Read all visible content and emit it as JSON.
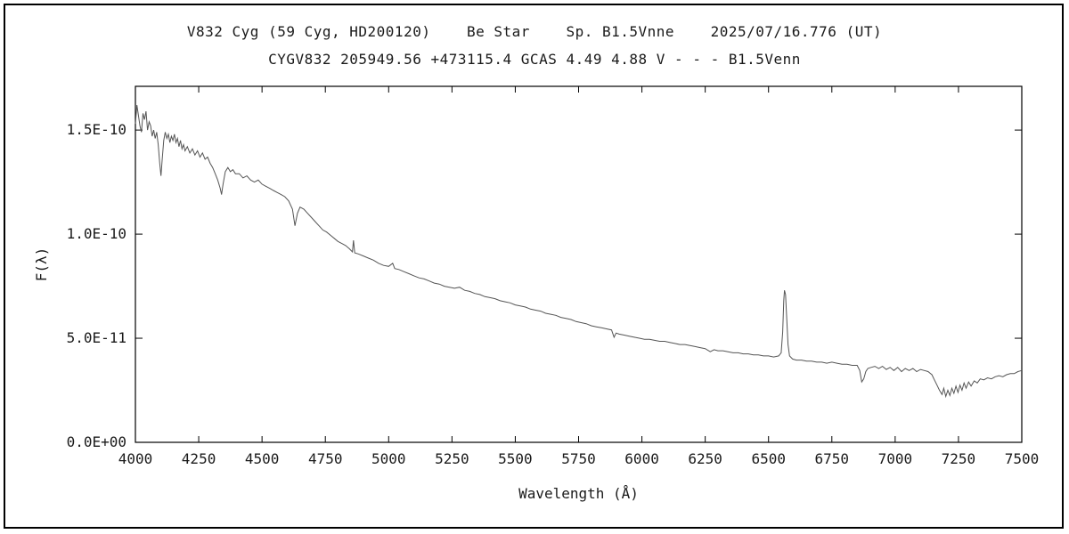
{
  "header": {
    "line1": "V832 Cyg (59 Cyg, HD200120)    Be Star    Sp. B1.5Vnne    2025/07/16.776 (UT)",
    "line2": "CYGV832 205949.56 +473115.4 GCAS 4.49 4.88 V - - - B1.5Venn"
  },
  "colors": {
    "spectrum_line": "#555555",
    "axis": "#000000",
    "background": "#ffffff",
    "text": "#1a1a1a"
  },
  "chart_data": {
    "type": "line",
    "title": "V832 Cyg (59 Cyg, HD200120) Be Star Sp. B1.5Vnne 2025/07/16.776 (UT)",
    "subtitle": "CYGV832 205949.56 +473115.4 GCAS 4.49 4.88 V - - - B1.5Venn",
    "xlabel": "Wavelength (Å)",
    "ylabel": "F(λ)",
    "grid": false,
    "legend": null,
    "y_unit": "1e-11",
    "xlim": [
      4000,
      7500
    ],
    "ylim": [
      0,
      17.1
    ],
    "x_ticks": [
      4000,
      4250,
      4500,
      4750,
      5000,
      5250,
      5500,
      5750,
      6000,
      6250,
      6500,
      6750,
      7000,
      7250,
      7500
    ],
    "y_ticks": [
      {
        "v": 0,
        "label": "0.0E+00"
      },
      {
        "v": 5,
        "label": "5.0E-11"
      },
      {
        "v": 10,
        "label": "1.0E-10"
      },
      {
        "v": 15,
        "label": "1.5E-10"
      }
    ],
    "features": [
      {
        "name": "H-delta absorption",
        "wavelength": 4101
      },
      {
        "name": "H-gamma absorption",
        "wavelength": 4340
      },
      {
        "name": "H-beta weak emission",
        "wavelength": 4861
      },
      {
        "name": "Na D absorption",
        "wavelength": 5890
      },
      {
        "name": "H-alpha emission peak",
        "wavelength": 6563,
        "flux": 7.3
      },
      {
        "name": "telluric B band absorption",
        "wavelength": 6870
      },
      {
        "name": "telluric H2O absorption band",
        "wavelength": 7200
      }
    ],
    "points": [
      [
        4000,
        15.3
      ],
      [
        4006,
        16.2
      ],
      [
        4012,
        15.7
      ],
      [
        4018,
        15.2
      ],
      [
        4024,
        14.9
      ],
      [
        4030,
        15.8
      ],
      [
        4036,
        15.5
      ],
      [
        4042,
        15.9
      ],
      [
        4048,
        15.0
      ],
      [
        4054,
        15.4
      ],
      [
        4060,
        15.2
      ],
      [
        4066,
        14.7
      ],
      [
        4072,
        15.0
      ],
      [
        4078,
        14.6
      ],
      [
        4084,
        14.9
      ],
      [
        4090,
        14.3
      ],
      [
        4096,
        13.4
      ],
      [
        4101,
        12.8
      ],
      [
        4106,
        13.6
      ],
      [
        4112,
        14.5
      ],
      [
        4118,
        14.9
      ],
      [
        4124,
        14.6
      ],
      [
        4130,
        14.8
      ],
      [
        4136,
        14.4
      ],
      [
        4142,
        14.7
      ],
      [
        4148,
        14.5
      ],
      [
        4154,
        14.8
      ],
      [
        4160,
        14.4
      ],
      [
        4166,
        14.6
      ],
      [
        4172,
        14.2
      ],
      [
        4178,
        14.5
      ],
      [
        4184,
        14.1
      ],
      [
        4190,
        14.3
      ],
      [
        4196,
        14.0
      ],
      [
        4205,
        14.2
      ],
      [
        4215,
        13.9
      ],
      [
        4225,
        14.1
      ],
      [
        4235,
        13.8
      ],
      [
        4245,
        14.0
      ],
      [
        4255,
        13.7
      ],
      [
        4265,
        13.9
      ],
      [
        4275,
        13.6
      ],
      [
        4285,
        13.7
      ],
      [
        4295,
        13.4
      ],
      [
        4305,
        13.2
      ],
      [
        4315,
        12.9
      ],
      [
        4325,
        12.6
      ],
      [
        4335,
        12.2
      ],
      [
        4340,
        11.9
      ],
      [
        4346,
        12.4
      ],
      [
        4355,
        13.0
      ],
      [
        4365,
        13.2
      ],
      [
        4375,
        13.0
      ],
      [
        4385,
        13.1
      ],
      [
        4395,
        12.9
      ],
      [
        4410,
        12.9
      ],
      [
        4425,
        12.7
      ],
      [
        4440,
        12.8
      ],
      [
        4455,
        12.6
      ],
      [
        4470,
        12.5
      ],
      [
        4485,
        12.6
      ],
      [
        4500,
        12.4
      ],
      [
        4515,
        12.3
      ],
      [
        4530,
        12.2
      ],
      [
        4545,
        12.1
      ],
      [
        4560,
        12.0
      ],
      [
        4575,
        11.9
      ],
      [
        4590,
        11.8
      ],
      [
        4605,
        11.6
      ],
      [
        4620,
        11.2
      ],
      [
        4630,
        10.4
      ],
      [
        4640,
        11.0
      ],
      [
        4650,
        11.3
      ],
      [
        4665,
        11.2
      ],
      [
        4680,
        11.0
      ],
      [
        4695,
        10.8
      ],
      [
        4710,
        10.6
      ],
      [
        4725,
        10.4
      ],
      [
        4740,
        10.2
      ],
      [
        4755,
        10.1
      ],
      [
        4770,
        9.95
      ],
      [
        4785,
        9.8
      ],
      [
        4800,
        9.65
      ],
      [
        4815,
        9.55
      ],
      [
        4830,
        9.45
      ],
      [
        4845,
        9.3
      ],
      [
        4857,
        9.15
      ],
      [
        4861,
        9.7
      ],
      [
        4866,
        9.1
      ],
      [
        4880,
        9.05
      ],
      [
        4900,
        8.95
      ],
      [
        4920,
        8.85
      ],
      [
        4940,
        8.75
      ],
      [
        4960,
        8.6
      ],
      [
        4980,
        8.5
      ],
      [
        5000,
        8.45
      ],
      [
        5016,
        8.6
      ],
      [
        5024,
        8.35
      ],
      [
        5040,
        8.3
      ],
      [
        5060,
        8.2
      ],
      [
        5080,
        8.1
      ],
      [
        5100,
        8.0
      ],
      [
        5120,
        7.9
      ],
      [
        5140,
        7.85
      ],
      [
        5160,
        7.75
      ],
      [
        5180,
        7.65
      ],
      [
        5200,
        7.6
      ],
      [
        5220,
        7.5
      ],
      [
        5240,
        7.45
      ],
      [
        5260,
        7.4
      ],
      [
        5280,
        7.45
      ],
      [
        5300,
        7.3
      ],
      [
        5320,
        7.25
      ],
      [
        5340,
        7.15
      ],
      [
        5360,
        7.1
      ],
      [
        5380,
        7.0
      ],
      [
        5400,
        6.95
      ],
      [
        5420,
        6.9
      ],
      [
        5440,
        6.8
      ],
      [
        5460,
        6.75
      ],
      [
        5480,
        6.7
      ],
      [
        5500,
        6.6
      ],
      [
        5520,
        6.55
      ],
      [
        5540,
        6.5
      ],
      [
        5560,
        6.4
      ],
      [
        5580,
        6.35
      ],
      [
        5600,
        6.3
      ],
      [
        5620,
        6.2
      ],
      [
        5640,
        6.15
      ],
      [
        5660,
        6.1
      ],
      [
        5680,
        6.0
      ],
      [
        5700,
        5.95
      ],
      [
        5720,
        5.9
      ],
      [
        5740,
        5.8
      ],
      [
        5760,
        5.75
      ],
      [
        5780,
        5.7
      ],
      [
        5800,
        5.6
      ],
      [
        5820,
        5.55
      ],
      [
        5840,
        5.5
      ],
      [
        5860,
        5.45
      ],
      [
        5880,
        5.4
      ],
      [
        5890,
        5.05
      ],
      [
        5898,
        5.25
      ],
      [
        5910,
        5.2
      ],
      [
        5930,
        5.15
      ],
      [
        5950,
        5.1
      ],
      [
        5970,
        5.05
      ],
      [
        5990,
        5.0
      ],
      [
        6010,
        4.95
      ],
      [
        6030,
        4.95
      ],
      [
        6050,
        4.9
      ],
      [
        6070,
        4.85
      ],
      [
        6090,
        4.85
      ],
      [
        6110,
        4.8
      ],
      [
        6130,
        4.75
      ],
      [
        6150,
        4.7
      ],
      [
        6170,
        4.7
      ],
      [
        6190,
        4.65
      ],
      [
        6210,
        4.6
      ],
      [
        6230,
        4.55
      ],
      [
        6250,
        4.5
      ],
      [
        6270,
        4.35
      ],
      [
        6285,
        4.45
      ],
      [
        6300,
        4.4
      ],
      [
        6320,
        4.4
      ],
      [
        6340,
        4.35
      ],
      [
        6360,
        4.3
      ],
      [
        6380,
        4.3
      ],
      [
        6400,
        4.25
      ],
      [
        6420,
        4.25
      ],
      [
        6440,
        4.2
      ],
      [
        6460,
        4.2
      ],
      [
        6480,
        4.15
      ],
      [
        6500,
        4.15
      ],
      [
        6520,
        4.1
      ],
      [
        6540,
        4.15
      ],
      [
        6550,
        4.3
      ],
      [
        6556,
        5.3
      ],
      [
        6560,
        6.8
      ],
      [
        6563,
        7.3
      ],
      [
        6567,
        7.1
      ],
      [
        6572,
        5.9
      ],
      [
        6577,
        4.7
      ],
      [
        6583,
        4.15
      ],
      [
        6595,
        4.0
      ],
      [
        6610,
        3.95
      ],
      [
        6630,
        3.95
      ],
      [
        6650,
        3.9
      ],
      [
        6670,
        3.9
      ],
      [
        6690,
        3.85
      ],
      [
        6710,
        3.85
      ],
      [
        6730,
        3.8
      ],
      [
        6750,
        3.85
      ],
      [
        6770,
        3.8
      ],
      [
        6790,
        3.75
      ],
      [
        6810,
        3.75
      ],
      [
        6830,
        3.7
      ],
      [
        6850,
        3.7
      ],
      [
        6860,
        3.45
      ],
      [
        6868,
        2.9
      ],
      [
        6876,
        3.05
      ],
      [
        6884,
        3.4
      ],
      [
        6892,
        3.55
      ],
      [
        6905,
        3.6
      ],
      [
        6920,
        3.65
      ],
      [
        6935,
        3.55
      ],
      [
        6950,
        3.65
      ],
      [
        6965,
        3.5
      ],
      [
        6980,
        3.6
      ],
      [
        6995,
        3.45
      ],
      [
        7010,
        3.6
      ],
      [
        7025,
        3.4
      ],
      [
        7040,
        3.55
      ],
      [
        7055,
        3.45
      ],
      [
        7070,
        3.55
      ],
      [
        7085,
        3.4
      ],
      [
        7100,
        3.5
      ],
      [
        7115,
        3.45
      ],
      [
        7130,
        3.4
      ],
      [
        7145,
        3.25
      ],
      [
        7155,
        3.0
      ],
      [
        7165,
        2.75
      ],
      [
        7175,
        2.5
      ],
      [
        7185,
        2.3
      ],
      [
        7192,
        2.6
      ],
      [
        7200,
        2.2
      ],
      [
        7208,
        2.5
      ],
      [
        7216,
        2.25
      ],
      [
        7224,
        2.6
      ],
      [
        7232,
        2.35
      ],
      [
        7240,
        2.7
      ],
      [
        7248,
        2.4
      ],
      [
        7256,
        2.75
      ],
      [
        7264,
        2.5
      ],
      [
        7272,
        2.85
      ],
      [
        7280,
        2.6
      ],
      [
        7290,
        2.9
      ],
      [
        7300,
        2.7
      ],
      [
        7312,
        2.95
      ],
      [
        7324,
        2.85
      ],
      [
        7336,
        3.05
      ],
      [
        7350,
        3.0
      ],
      [
        7365,
        3.1
      ],
      [
        7380,
        3.05
      ],
      [
        7395,
        3.15
      ],
      [
        7410,
        3.2
      ],
      [
        7425,
        3.15
      ],
      [
        7440,
        3.25
      ],
      [
        7455,
        3.3
      ],
      [
        7470,
        3.3
      ],
      [
        7485,
        3.4
      ],
      [
        7500,
        3.45
      ]
    ]
  }
}
